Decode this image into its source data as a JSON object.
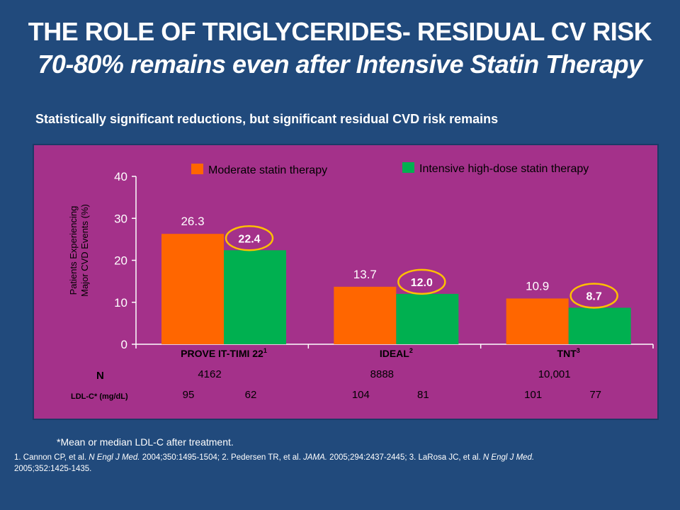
{
  "slide": {
    "title_line1": "THE ROLE OF TRIGLYCERIDES-  RESIDUAL CV RISK",
    "title_line2": "70-80% remains even after Intensive Statin Therapy",
    "subtitle": "Statistically significant reductions, but significant residual CVD risk remains",
    "footnote": "*Mean or median LDL-C after treatment.",
    "references": [
      {
        "text": "1. Cannon CP, et al. ",
        "italic": false
      },
      {
        "text": "N Engl J Med.",
        "italic": true
      },
      {
        "text": " 2004;350:1495-1504; 2. Pedersen TR, et al. ",
        "italic": false
      },
      {
        "text": "JAMA.",
        "italic": true
      },
      {
        "text": " 2005;294:2437-2445; 3. LaRosa JC, et al. ",
        "italic": false
      },
      {
        "text": "N Engl J Med.",
        "italic": true
      },
      {
        "text": " 2005;352:1425-1435.",
        "italic": false
      }
    ]
  },
  "colors": {
    "background": "#214a7c",
    "panel": "#a4318a",
    "moderate": "#ff6600",
    "intensive": "#00b050",
    "highlight_ring": "#ffc000"
  },
  "chart_data": {
    "type": "bar",
    "categories": [
      {
        "name": "PROVE IT-TIMI 22",
        "sup": "1",
        "n": "4162",
        "ldl": [
          "95",
          "62"
        ]
      },
      {
        "name": "IDEAL",
        "sup": "2",
        "n": "8888",
        "ldl": [
          "104",
          "81"
        ]
      },
      {
        "name": "TNT",
        "sup": "3",
        "n": "10,001",
        "ldl": [
          "101",
          "77"
        ]
      }
    ],
    "series": [
      {
        "name": "Moderate statin therapy",
        "values": [
          26.3,
          13.7,
          10.9
        ],
        "labels": [
          "26.3",
          "13.7",
          "10.9"
        ],
        "highlight": false
      },
      {
        "name": "Intensive high-dose statin therapy",
        "values": [
          22.4,
          12.0,
          8.7
        ],
        "labels": [
          "22.4",
          "12.0",
          "8.7"
        ],
        "highlight": true
      }
    ],
    "ylabel_line1": "Patients Experiencing",
    "ylabel_line2": "Major CVD Events (%)",
    "ylim": [
      0,
      40
    ],
    "yticks": [
      "0",
      "10",
      "20",
      "30",
      "40"
    ],
    "row_labels": {
      "n": "N",
      "ldl": "LDL-C* (mg/dL)"
    },
    "grid": false,
    "legend_position": "top"
  }
}
